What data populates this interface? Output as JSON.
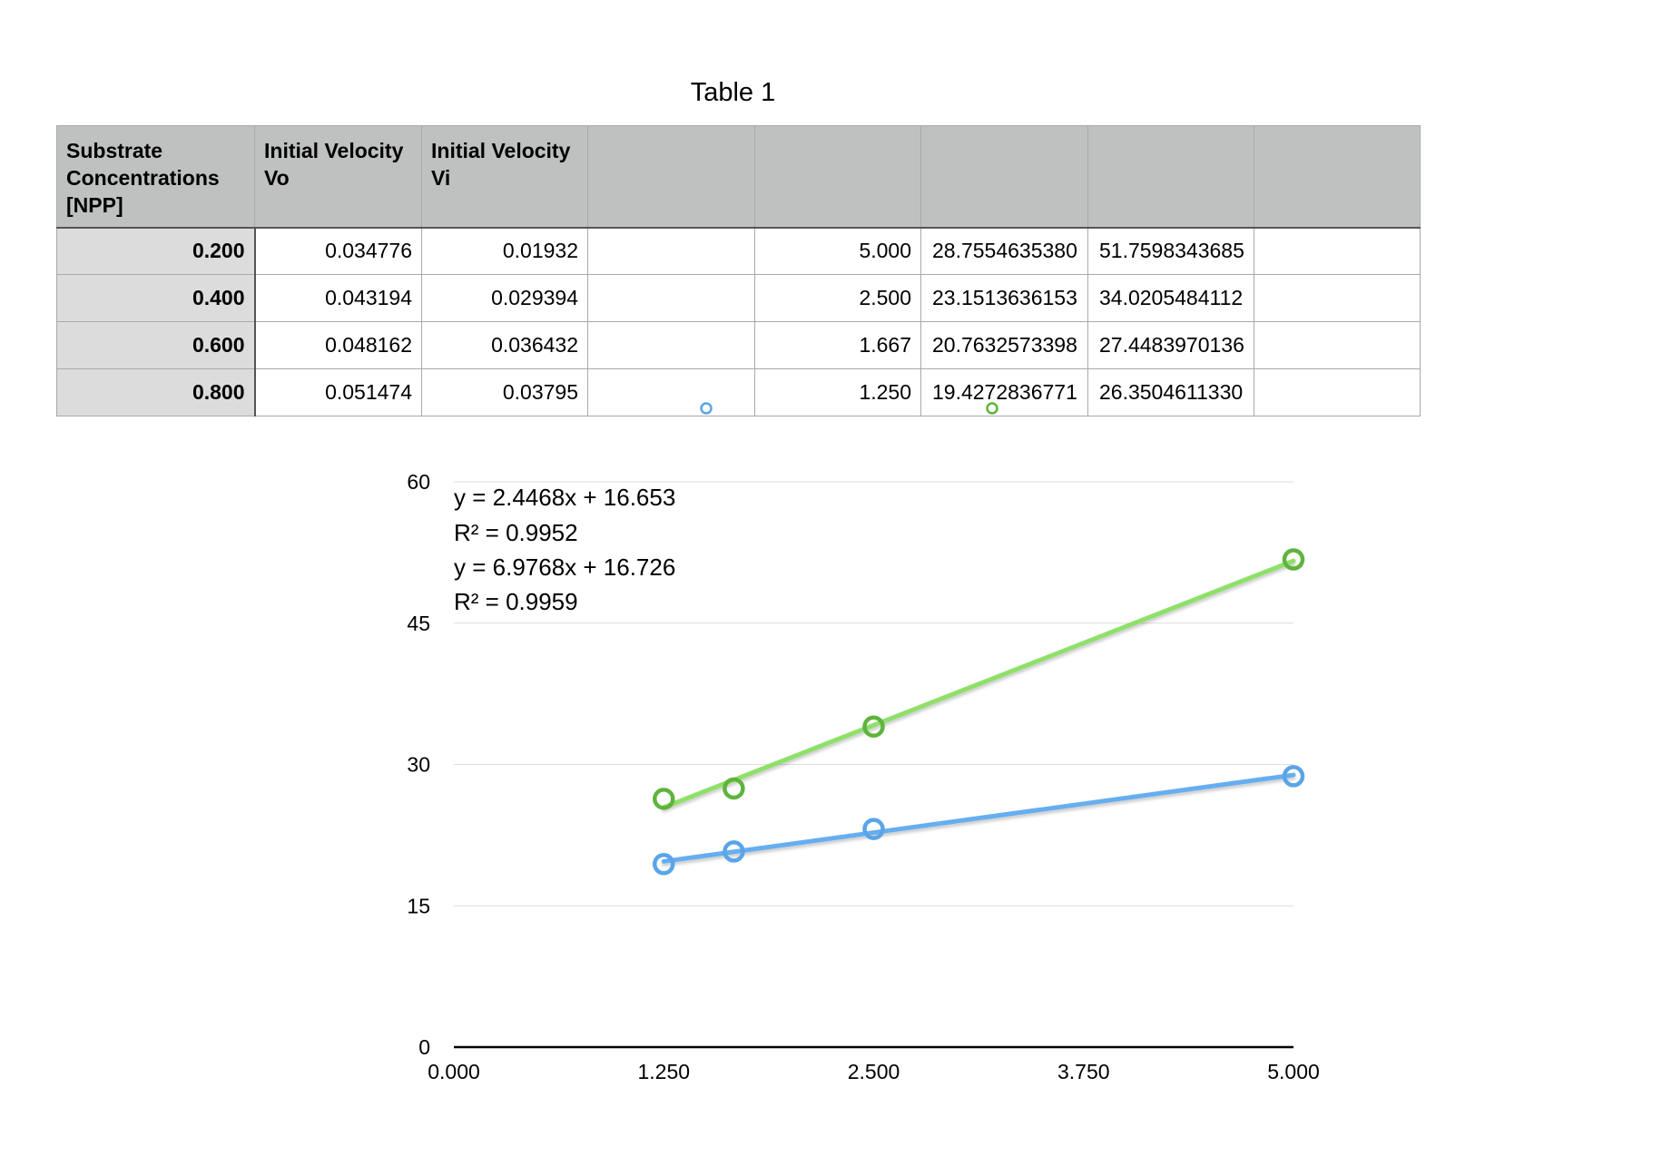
{
  "table": {
    "title": "Table 1",
    "headers": [
      "Substrate Concentrations [NPP]",
      "Initial Velocity Vo",
      "Initial Velocity Vi",
      "",
      "",
      "",
      "",
      ""
    ],
    "rows": [
      [
        "0.200",
        "0.034776",
        "0.01932",
        "",
        "5.000",
        "28.7554635380",
        "51.7598343685",
        ""
      ],
      [
        "0.400",
        "0.043194",
        "0.029394",
        "",
        "2.500",
        "23.1513636153",
        "34.0205484112",
        ""
      ],
      [
        "0.600",
        "0.048162",
        "0.036432",
        "",
        "1.667",
        "20.7632573398",
        "27.4483970136",
        ""
      ],
      [
        "0.800",
        "0.051474",
        "0.03795",
        "",
        "1.250",
        "19.4272836771",
        "26.3504611330",
        ""
      ]
    ]
  },
  "chart_data": {
    "type": "scatter",
    "xlim": [
      0,
      5
    ],
    "ylim": [
      0,
      60
    ],
    "xticks": [
      "0.000",
      "1.250",
      "2.500",
      "3.750",
      "5.000"
    ],
    "yticks": [
      "0",
      "15",
      "30",
      "45",
      "60"
    ],
    "grid": true,
    "series": [
      {
        "color": "#5aa5e8",
        "line_color": "#66aef0",
        "x": [
          5.0,
          2.5,
          1.667,
          1.25
        ],
        "y": [
          28.755,
          23.151,
          20.763,
          19.427
        ],
        "trendline": {
          "slope": 2.4468,
          "intercept": 16.653
        }
      },
      {
        "color": "#5fb43d",
        "line_color": "#8fe06a",
        "x": [
          5.0,
          2.5,
          1.667,
          1.25
        ],
        "y": [
          51.76,
          34.021,
          27.448,
          26.35
        ],
        "trendline": {
          "slope": 6.9768,
          "intercept": 16.726
        }
      }
    ],
    "annotations": [
      "y = 2.4468x + 16.653",
      "R² = 0.9952",
      "y = 6.9768x + 16.726",
      "R² = 0.9959"
    ]
  }
}
